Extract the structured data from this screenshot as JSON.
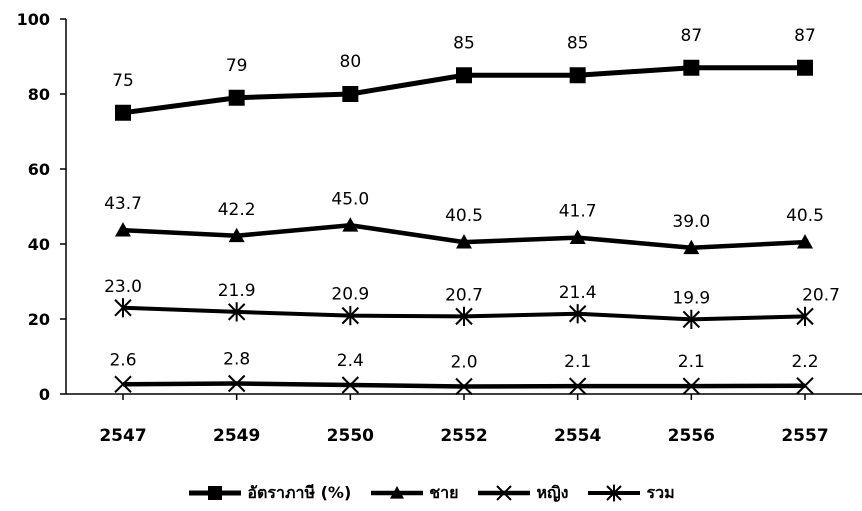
{
  "chart_data": {
    "type": "line",
    "categories": [
      "2547",
      "2549",
      "2550",
      "2552",
      "2554",
      "2556",
      "2557"
    ],
    "ylim": [
      0,
      100
    ],
    "yticks": [
      0,
      20,
      40,
      60,
      80,
      100
    ],
    "grid": false,
    "legend_position": "bottom",
    "title": "",
    "xlabel": "",
    "ylabel": "",
    "series": [
      {
        "name": "อัตราภาษี (%)",
        "marker": "square",
        "values": [
          75,
          79,
          80,
          85,
          85,
          87,
          87
        ],
        "labels": [
          "75",
          "79",
          "80",
          "85",
          "85",
          "87",
          "87"
        ]
      },
      {
        "name": "ชาย",
        "marker": "triangle",
        "values": [
          43.7,
          42.2,
          45.0,
          40.5,
          41.7,
          39.0,
          40.5
        ],
        "labels": [
          "43.7",
          "42.2",
          "45.0",
          "40.5",
          "41.7",
          "39.0",
          "40.5"
        ]
      },
      {
        "name": "หญิง",
        "marker": "x",
        "values": [
          2.6,
          2.8,
          2.4,
          2.0,
          2.1,
          2.1,
          2.2
        ],
        "labels": [
          "2.6",
          "2.8",
          "2.4",
          "2.0",
          "2.1",
          "2.1",
          "2.2"
        ]
      },
      {
        "name": "รวม",
        "marker": "star",
        "values": [
          23.0,
          21.9,
          20.9,
          20.7,
          21.4,
          19.9,
          20.7
        ],
        "labels": [
          "23.0",
          "21.9",
          "20.9",
          "20.7",
          "21.4",
          "19.9",
          "20.7"
        ]
      }
    ]
  }
}
